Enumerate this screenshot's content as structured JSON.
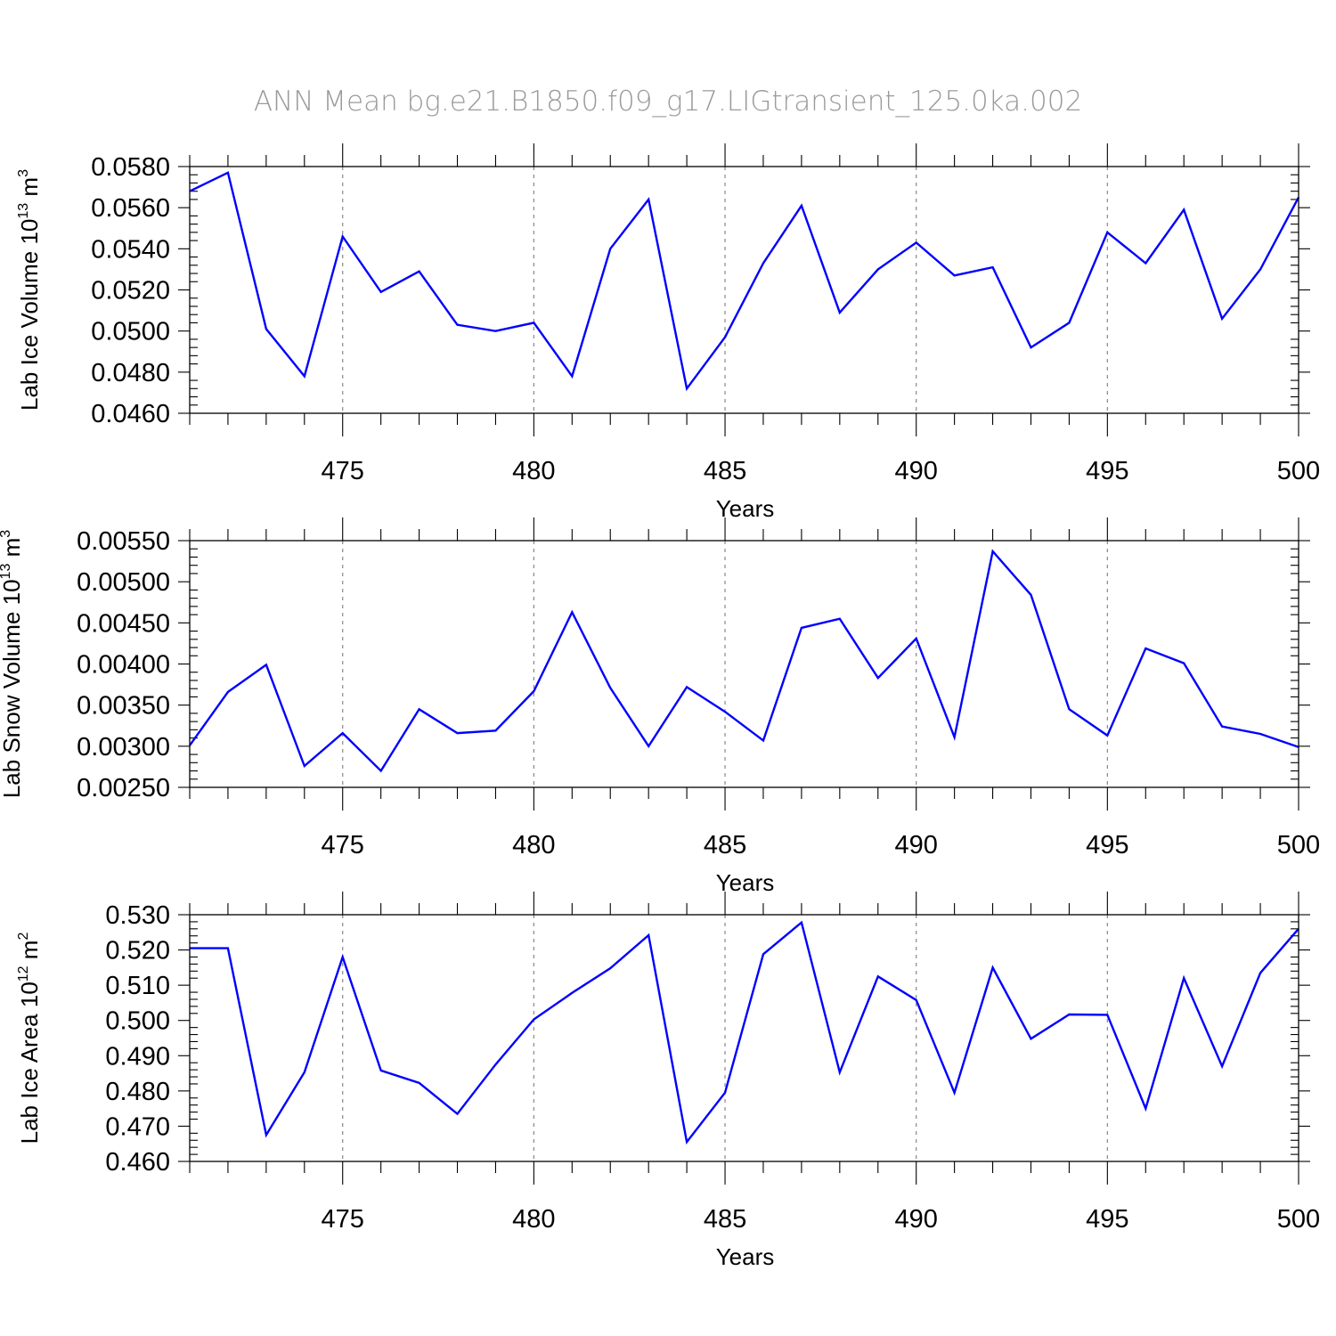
{
  "title": "ANN  Mean  bg.e21.B1850.f09_g17.LIGtransient_125.0ka.002",
  "colors": {
    "series": "#0000ff",
    "grid": "#888888",
    "title": "#9a9a9a"
  },
  "chart_data": [
    {
      "type": "line",
      "ylabel": "Lab Ice Volume 10",
      "ylabel_exp": "13",
      "ylabel_unit": " m",
      "ylabel_unit_exp": "3",
      "xlabel": "Years",
      "xlim": [
        471,
        500
      ],
      "ylim": [
        0.046,
        0.058
      ],
      "yticks": [
        0.046,
        0.048,
        0.05,
        0.052,
        0.054,
        0.056,
        0.058
      ],
      "ytick_labels": [
        "0.0460",
        "0.0480",
        "0.0500",
        "0.0520",
        "0.0540",
        "0.0560",
        "0.0580"
      ],
      "xticks": [
        475,
        480,
        485,
        490,
        495,
        500
      ],
      "xtick_labels": [
        "475",
        "480",
        "485",
        "490",
        "495",
        "500"
      ],
      "grid": "vertical dashed at major x ticks",
      "x": [
        471,
        472,
        473,
        474,
        475,
        476,
        477,
        478,
        479,
        480,
        481,
        482,
        483,
        484,
        485,
        486,
        487,
        488,
        489,
        490,
        491,
        492,
        493,
        494,
        495,
        496,
        497,
        498,
        499,
        500
      ],
      "values": [
        0.0568,
        0.0577,
        0.0501,
        0.0478,
        0.0546,
        0.0519,
        0.0529,
        0.0503,
        0.05,
        0.0504,
        0.0478,
        0.054,
        0.0564,
        0.0472,
        0.0497,
        0.0533,
        0.0561,
        0.0509,
        0.053,
        0.0543,
        0.0527,
        0.0531,
        0.0492,
        0.0504,
        0.0548,
        0.0533,
        0.0559,
        0.0506,
        0.053,
        0.0565
      ]
    },
    {
      "type": "line",
      "ylabel": "Lab Snow Volume 10",
      "ylabel_exp": "13",
      "ylabel_unit": " m",
      "ylabel_unit_exp": "3",
      "xlabel": "Years",
      "xlim": [
        471,
        500
      ],
      "ylim": [
        0.0025,
        0.0055
      ],
      "yticks": [
        0.0025,
        0.003,
        0.0035,
        0.004,
        0.0045,
        0.005,
        0.0055
      ],
      "ytick_labels": [
        "0.00250",
        "0.00300",
        "0.00350",
        "0.00400",
        "0.00450",
        "0.00500",
        "0.00550"
      ],
      "xticks": [
        475,
        480,
        485,
        490,
        495,
        500
      ],
      "xtick_labels": [
        "475",
        "480",
        "485",
        "490",
        "495",
        "500"
      ],
      "grid": "vertical dashed at major x ticks",
      "x": [
        471,
        472,
        473,
        474,
        475,
        476,
        477,
        478,
        479,
        480,
        481,
        482,
        483,
        484,
        485,
        486,
        487,
        488,
        489,
        490,
        491,
        492,
        493,
        494,
        495,
        496,
        497,
        498,
        499,
        500
      ],
      "values": [
        0.00301,
        0.00366,
        0.00399,
        0.00276,
        0.00316,
        0.0027,
        0.00345,
        0.00316,
        0.00319,
        0.00367,
        0.00463,
        0.00371,
        0.003,
        0.00372,
        0.00342,
        0.00307,
        0.00444,
        0.00455,
        0.00383,
        0.00431,
        0.00311,
        0.00537,
        0.00484,
        0.00345,
        0.00313,
        0.00419,
        0.00401,
        0.00324,
        0.00315,
        0.00299
      ]
    },
    {
      "type": "line",
      "ylabel": "Lab Ice Area 10",
      "ylabel_exp": "12",
      "ylabel_unit": " m",
      "ylabel_unit_exp": "2",
      "xlabel": "Years",
      "xlim": [
        471,
        500
      ],
      "ylim": [
        0.46,
        0.53
      ],
      "yticks": [
        0.46,
        0.47,
        0.48,
        0.49,
        0.5,
        0.51,
        0.52,
        0.53
      ],
      "ytick_labels": [
        "0.460",
        "0.470",
        "0.480",
        "0.490",
        "0.500",
        "0.510",
        "0.520",
        "0.530"
      ],
      "xticks": [
        475,
        480,
        485,
        490,
        495,
        500
      ],
      "xtick_labels": [
        "475",
        "480",
        "485",
        "490",
        "495",
        "500"
      ],
      "grid": "vertical dashed at major x ticks",
      "x": [
        471,
        472,
        473,
        474,
        475,
        476,
        477,
        478,
        479,
        480,
        481,
        482,
        483,
        484,
        485,
        486,
        487,
        488,
        489,
        490,
        491,
        492,
        493,
        494,
        495,
        496,
        497,
        498,
        499,
        500
      ],
      "values": [
        0.5205,
        0.5205,
        0.4675,
        0.4853,
        0.518,
        0.4858,
        0.4823,
        0.4735,
        0.4875,
        0.5003,
        0.5078,
        0.5148,
        0.5242,
        0.4655,
        0.4795,
        0.5188,
        0.5278,
        0.4853,
        0.5125,
        0.5058,
        0.4795,
        0.515,
        0.4948,
        0.5017,
        0.5016,
        0.475,
        0.512,
        0.487,
        0.5135,
        0.526
      ]
    }
  ]
}
